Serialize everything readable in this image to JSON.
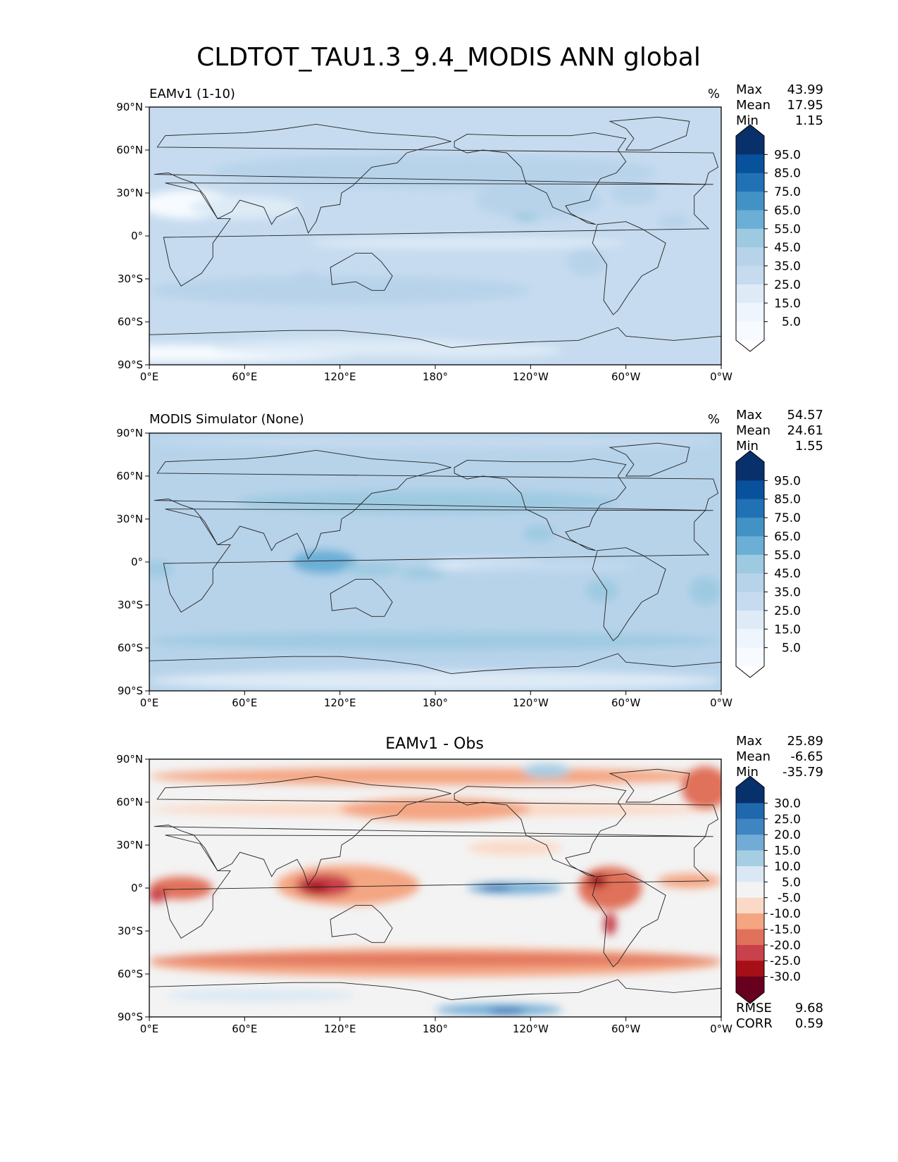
{
  "figure_title": "CLDTOT_TAU1.3_9.4_MODIS ANN global",
  "colors": {
    "land": "#f4f7fb",
    "coast": "#222222",
    "blues": [
      "#f7fbff",
      "#deebf7",
      "#c6dbef",
      "#b7d3ea",
      "#9ecae1",
      "#6baed6",
      "#4292c6",
      "#2171b5",
      "#08519c",
      "#08306b"
    ],
    "diverging": [
      "#67001f",
      "#a50f15",
      "#c9414a",
      "#e0715a",
      "#f4a582",
      "#fbd9c6",
      "#f3f3f3",
      "#d9e8f4",
      "#a6cee3",
      "#72acd6",
      "#3f85c2",
      "#2068ad",
      "#08306b"
    ]
  },
  "chart_data": [
    {
      "type": "heatmap",
      "title": "EAMv1 (1-10)",
      "units": "%",
      "stats": [
        {
          "label": "Max",
          "value": "43.99"
        },
        {
          "label": "Mean",
          "value": "17.95"
        },
        {
          "label": "Min",
          "value": "1.15"
        }
      ],
      "xticks": [
        "0°E",
        "60°E",
        "120°E",
        "180°",
        "120°W",
        "60°W",
        "0°W"
      ],
      "yticks": [
        "90°N",
        "60°N",
        "30°N",
        "0°",
        "30°S",
        "60°S",
        "90°S"
      ],
      "xlim": [
        0,
        360
      ],
      "ylim": [
        -90,
        90
      ],
      "colorbar_ticks": [
        "95.0",
        "85.0",
        "75.0",
        "65.0",
        "55.0",
        "45.0",
        "35.0",
        "25.0",
        "15.0",
        "5.0"
      ],
      "background_level": 2,
      "features": [
        {
          "lon": 15,
          "lat": -82,
          "rlon": 120,
          "rlat": 6,
          "level": 0
        },
        {
          "lon": 130,
          "lat": -78,
          "rlon": 90,
          "rlat": 6,
          "level": 1
        },
        {
          "lon": 200,
          "lat": -80,
          "rlon": 60,
          "rlat": 5,
          "level": 1
        },
        {
          "lon": 25,
          "lat": 22,
          "rlon": 30,
          "rlat": 10,
          "level": 0
        },
        {
          "lon": 60,
          "lat": 20,
          "rlon": 35,
          "rlat": 8,
          "level": 1
        },
        {
          "lon": 245,
          "lat": 25,
          "rlon": 40,
          "rlat": 13,
          "level": 3
        },
        {
          "lon": 237,
          "lat": 13,
          "rlon": 8,
          "rlat": 3,
          "level": 4
        },
        {
          "lon": 275,
          "lat": -18,
          "rlon": 12,
          "rlat": 10,
          "level": 3
        },
        {
          "lon": 100,
          "lat": -28,
          "rlon": 8,
          "rlat": 3,
          "level": 3
        },
        {
          "lon": 200,
          "lat": -5,
          "rlon": 100,
          "rlat": 4,
          "level": 1
        },
        {
          "lon": 120,
          "lat": -38,
          "rlon": 120,
          "rlat": 10,
          "level": 3
        },
        {
          "lon": 180,
          "lat": 45,
          "rlon": 140,
          "rlat": 12,
          "level": 3
        },
        {
          "lon": 305,
          "lat": 30,
          "rlon": 15,
          "rlat": 8,
          "level": 3
        },
        {
          "lon": 330,
          "lat": 10,
          "rlon": 10,
          "rlat": 5,
          "level": 3
        }
      ]
    },
    {
      "type": "heatmap",
      "title": "MODIS Simulator (None)",
      "units": "%",
      "stats": [
        {
          "label": "Max",
          "value": "54.57"
        },
        {
          "label": "Mean",
          "value": "24.61"
        },
        {
          "label": "Min",
          "value": "1.55"
        }
      ],
      "xticks": [
        "0°E",
        "60°E",
        "120°E",
        "180°",
        "120°W",
        "60°W",
        "0°W"
      ],
      "yticks": [
        "90°N",
        "60°N",
        "30°N",
        "0°",
        "30°S",
        "60°S",
        "90°S"
      ],
      "xlim": [
        0,
        360
      ],
      "ylim": [
        -90,
        90
      ],
      "colorbar_ticks": [
        "95.0",
        "85.0",
        "75.0",
        "65.0",
        "55.0",
        "45.0",
        "35.0",
        "25.0",
        "15.0",
        "5.0"
      ],
      "background_level": 3,
      "features": [
        {
          "lon": 180,
          "lat": -83,
          "rlon": 180,
          "rlat": 7,
          "level": 1
        },
        {
          "lon": 180,
          "lat": 84,
          "rlon": 180,
          "rlat": 4,
          "level": 2
        },
        {
          "lon": 215,
          "lat": -2,
          "rlon": 40,
          "rlat": 4,
          "level": 1
        },
        {
          "lon": 250,
          "lat": -3,
          "rlon": 55,
          "rlat": 3,
          "level": 2
        },
        {
          "lon": 110,
          "lat": 0,
          "rlon": 20,
          "rlat": 8,
          "level": 5
        },
        {
          "lon": 140,
          "lat": -5,
          "rlon": 18,
          "rlat": 5,
          "level": 4
        },
        {
          "lon": 172,
          "lat": -8,
          "rlon": 14,
          "rlat": 4,
          "level": 4
        },
        {
          "lon": 245,
          "lat": 20,
          "rlon": 10,
          "rlat": 6,
          "level": 4
        },
        {
          "lon": 175,
          "lat": 42,
          "rlon": 120,
          "rlat": 8,
          "level": 4
        },
        {
          "lon": 180,
          "lat": -55,
          "rlon": 180,
          "rlat": 6,
          "level": 4
        },
        {
          "lon": 5,
          "lat": -5,
          "rlon": 10,
          "rlat": 6,
          "level": 4
        },
        {
          "lon": 285,
          "lat": -20,
          "rlon": 10,
          "rlat": 8,
          "level": 4
        },
        {
          "lon": 350,
          "lat": -20,
          "rlon": 10,
          "rlat": 10,
          "level": 4
        }
      ]
    },
    {
      "type": "heatmap",
      "title": "EAMv1 - Obs",
      "units": "",
      "stats": [
        {
          "label": "Max",
          "value": "25.89"
        },
        {
          "label": "Mean",
          "value": "-6.65"
        },
        {
          "label": "Min",
          "value": "-35.79"
        }
      ],
      "extra_stats": [
        {
          "label": "RMSE",
          "value": "9.68"
        },
        {
          "label": "CORR",
          "value": "0.59"
        }
      ],
      "xticks": [
        "0°E",
        "60°E",
        "120°E",
        "180°",
        "120°W",
        "60°W",
        "0°W"
      ],
      "yticks": [
        "90°N",
        "60°N",
        "30°N",
        "0°",
        "30°S",
        "60°S",
        "90°S"
      ],
      "xlim": [
        0,
        360
      ],
      "ylim": [
        -90,
        90
      ],
      "colorbar_ticks": [
        "30.0",
        "25.0",
        "20.0",
        "15.0",
        "10.0",
        "5.0",
        "-5.0",
        "-10.0",
        "-15.0",
        "-20.0",
        "-25.0",
        "-30.0"
      ],
      "background_level": 6,
      "features": [
        {
          "lon": 180,
          "lat": -52,
          "rlon": 180,
          "rlat": 10,
          "level": 4
        },
        {
          "lon": 180,
          "lat": -50,
          "rlon": 180,
          "rlat": 4,
          "level": 3
        },
        {
          "lon": 180,
          "lat": 78,
          "rlon": 180,
          "rlat": 6,
          "level": 4
        },
        {
          "lon": 180,
          "lat": 55,
          "rlon": 180,
          "rlat": 5,
          "level": 5
        },
        {
          "lon": 180,
          "lat": 55,
          "rlon": 60,
          "rlat": 8,
          "level": 4
        },
        {
          "lon": 125,
          "lat": 2,
          "rlon": 45,
          "rlat": 14,
          "level": 4
        },
        {
          "lon": 110,
          "lat": 2,
          "rlon": 18,
          "rlat": 8,
          "level": 2
        },
        {
          "lon": 105,
          "lat": 0,
          "rlon": 8,
          "rlat": 4,
          "level": 1
        },
        {
          "lon": 20,
          "lat": 0,
          "rlon": 20,
          "rlat": 8,
          "level": 3
        },
        {
          "lon": 5,
          "lat": -5,
          "rlon": 6,
          "rlat": 5,
          "level": 2
        },
        {
          "lon": 290,
          "lat": 0,
          "rlon": 20,
          "rlat": 15,
          "level": 3
        },
        {
          "lon": 282,
          "lat": 5,
          "rlon": 6,
          "rlat": 5,
          "level": 1
        },
        {
          "lon": 290,
          "lat": -25,
          "rlon": 4,
          "rlat": 8,
          "level": 2
        },
        {
          "lon": 340,
          "lat": 5,
          "rlon": 20,
          "rlat": 5,
          "level": 4
        },
        {
          "lon": 350,
          "lat": 70,
          "rlon": 15,
          "rlat": 15,
          "level": 3
        },
        {
          "lon": 230,
          "lat": 0,
          "rlon": 30,
          "rlat": 4,
          "level": 9
        },
        {
          "lon": 218,
          "lat": 0,
          "rlon": 10,
          "rlat": 2,
          "level": 11
        },
        {
          "lon": 220,
          "lat": -85,
          "rlon": 40,
          "rlat": 4,
          "level": 9
        },
        {
          "lon": 225,
          "lat": -86,
          "rlon": 12,
          "rlat": 2,
          "level": 11
        },
        {
          "lon": 250,
          "lat": 82,
          "rlon": 15,
          "rlat": 5,
          "level": 8
        },
        {
          "lon": 70,
          "lat": -75,
          "rlon": 60,
          "rlat": 4,
          "level": 7
        },
        {
          "lon": 230,
          "lat": 28,
          "rlon": 30,
          "rlat": 5,
          "level": 5
        }
      ]
    }
  ]
}
